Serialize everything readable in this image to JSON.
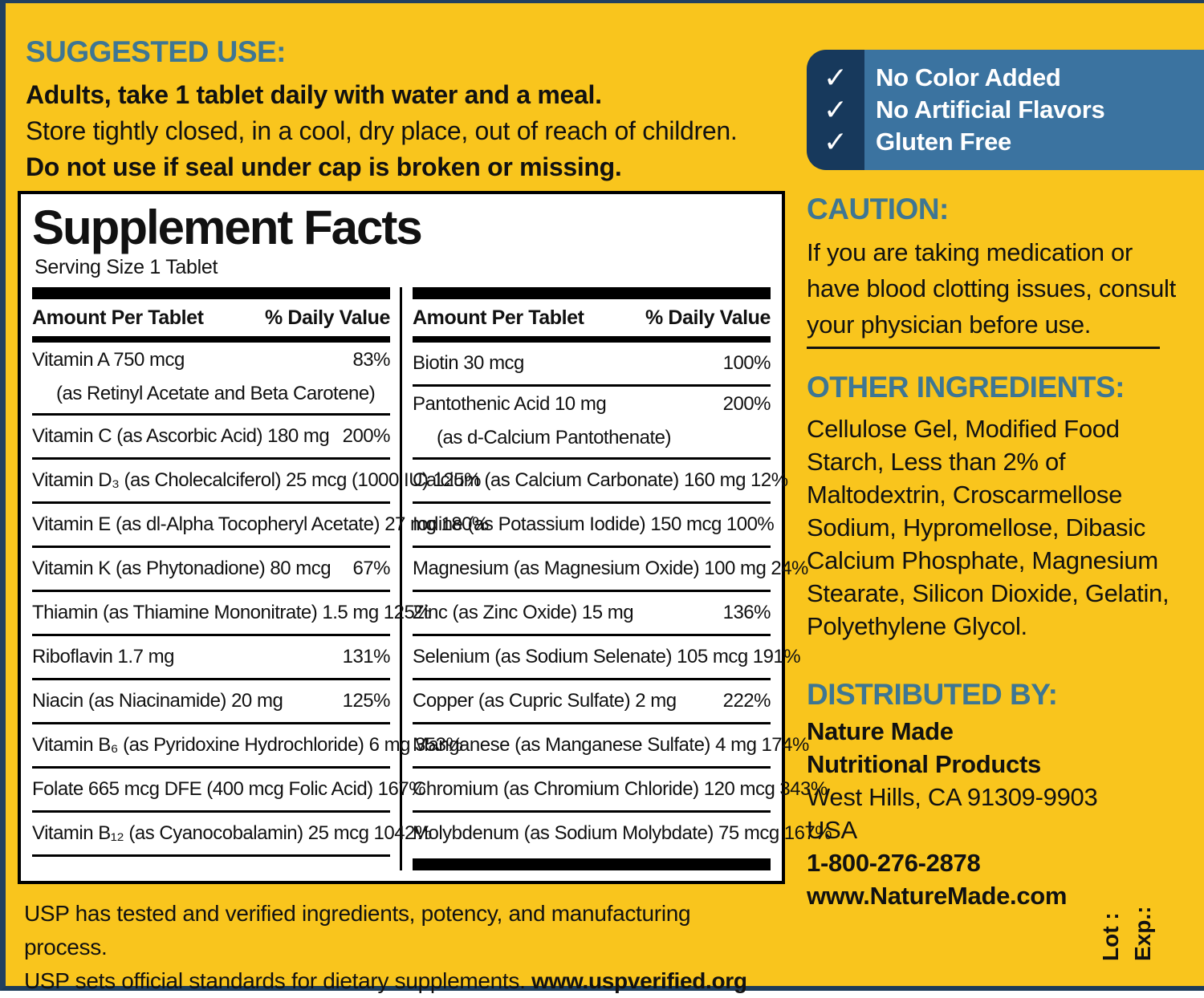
{
  "colors": {
    "background_yellow": "#F9C51D",
    "heading_teal": "#3E7693",
    "badge_navy": "#17395C",
    "badge_blue": "#3B73A0",
    "text_black": "#111111",
    "edge_navy": "#22405F"
  },
  "suggested_use": {
    "heading": "SUGGESTED USE:",
    "line1": "Adults, take 1 tablet daily with water and a meal.",
    "line2": "Store tightly closed, in a cool, dry place, out of reach of children.",
    "line3": "Do not use if seal under cap is broken or missing."
  },
  "badges": {
    "check_glyph": "✓",
    "items": [
      "No Color Added",
      "No Artificial Flavors",
      "Gluten Free"
    ]
  },
  "supplement_facts": {
    "title": "Supplement Facts",
    "serving": "Serving Size 1 Tablet",
    "col_header_amount": "Amount Per Tablet",
    "col_header_dv": "% Daily Value",
    "left_rows": [
      {
        "name": "Vitamin A  750 mcg",
        "sub": "(as Retinyl Acetate and Beta Carotene)",
        "dv": "83%"
      },
      {
        "name": "Vitamin C (as Ascorbic Acid)  180 mg",
        "dv": "200%"
      },
      {
        "name": "Vitamin D₃ (as Cholecalciferol) 25 mcg (1000 IU)",
        "dv": "125%"
      },
      {
        "name": "Vitamin E (as dl-Alpha Tocopheryl Acetate)  27 mg",
        "dv": "180%"
      },
      {
        "name": "Vitamin K (as Phytonadione)  80 mcg",
        "dv": "67%"
      },
      {
        "name": "Thiamin (as Thiamine Mononitrate)  1.5 mg",
        "dv": "125%"
      },
      {
        "name": "Riboflavin  1.7 mg",
        "dv": "131%"
      },
      {
        "name": "Niacin (as Niacinamide)  20 mg",
        "dv": "125%"
      },
      {
        "name": "Vitamin B₆ (as Pyridoxine Hydrochloride)  6 mg",
        "dv": "353%"
      },
      {
        "name": "Folate  665 mcg DFE (400 mcg Folic Acid)",
        "dv": "167%"
      },
      {
        "name": "Vitamin B₁₂ (as Cyanocobalamin)  25 mcg",
        "dv": "1042%"
      }
    ],
    "right_rows": [
      {
        "name": "Biotin  30 mcg",
        "dv": "100%"
      },
      {
        "name": "Pantothenic Acid  10 mg",
        "sub": "(as d-Calcium Pantothenate)",
        "dv": "200%"
      },
      {
        "name": "Calcium (as Calcium Carbonate)  160 mg",
        "dv": "12%"
      },
      {
        "name": "Iodine (as Potassium Iodide)  150 mcg",
        "dv": "100%"
      },
      {
        "name": "Magnesium (as Magnesium Oxide)  100 mg",
        "dv": "24%"
      },
      {
        "name": "Zinc (as Zinc Oxide)  15 mg",
        "dv": "136%"
      },
      {
        "name": "Selenium (as Sodium Selenate)  105 mcg",
        "dv": "191%"
      },
      {
        "name": "Copper (as Cupric Sulfate)  2 mg",
        "dv": "222%"
      },
      {
        "name": "Manganese (as Manganese Sulfate)  4 mg",
        "dv": "174%"
      },
      {
        "name": "Chromium (as Chromium Chloride)  120 mcg",
        "dv": "343%"
      },
      {
        "name": "Molybdenum (as Sodium Molybdate)  75 mcg",
        "dv": "167%"
      }
    ]
  },
  "caution": {
    "heading": "CAUTION:",
    "text": "If you are taking medication or have blood clotting issues, consult your physician before use."
  },
  "other_ingredients": {
    "heading": "OTHER INGREDIENTS:",
    "text": "Cellulose Gel, Modified Food Starch, Less than 2% of Maltodextrin, Croscarmellose Sodium, Hypromellose, Dibasic Calcium Phosphate, Magnesium Stearate, Silicon Dioxide, Gelatin, Polyethylene Glycol."
  },
  "distributed_by": {
    "heading": "DISTRIBUTED BY:",
    "lines": [
      "Nature Made",
      "Nutritional Products",
      "West Hills, CA 91309-9903",
      "USA",
      "1-800-276-2878",
      "www.NatureMade.com"
    ],
    "bold_flags": [
      true,
      true,
      false,
      false,
      true,
      true
    ]
  },
  "usp": {
    "line1": "USP has tested and verified ingredients, potency, and manufacturing process.",
    "line2": "USP sets official standards for dietary supplements. ",
    "line2_link": "www.uspverified.org"
  },
  "lot_label": "Lot :",
  "exp_label": "Exp.:"
}
